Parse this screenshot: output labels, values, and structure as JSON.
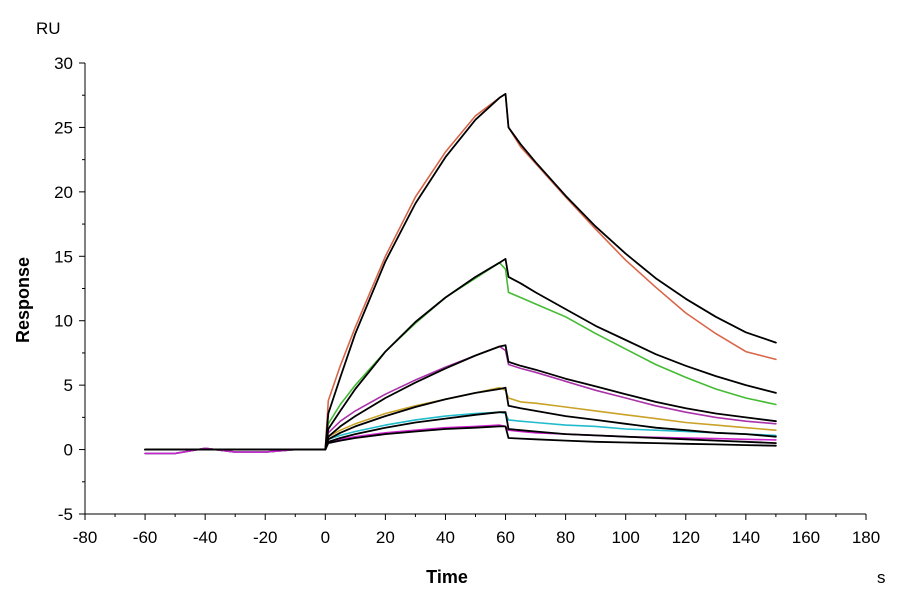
{
  "chart_data": {
    "type": "line",
    "title": "",
    "xlabel": "Time",
    "ylabel": "Response",
    "x_unit": "s",
    "y_unit": "RU",
    "xlim": [
      -80,
      180
    ],
    "ylim": [
      -5,
      30
    ],
    "x_ticks": [
      -80,
      -60,
      -40,
      -20,
      0,
      20,
      40,
      60,
      80,
      100,
      120,
      140,
      160,
      180
    ],
    "y_ticks": [
      -5,
      0,
      5,
      10,
      15,
      20,
      25,
      30
    ],
    "x_minor_step": 10,
    "y_minor_step": 2.5,
    "grid": false,
    "legend": "none",
    "injection_end": 60,
    "series": [
      {
        "color": "#d9664a",
        "fit_color": "#000000",
        "x": [
          -60,
          -50,
          -40,
          -30,
          -20,
          -10,
          -2,
          0,
          1,
          5,
          10,
          20,
          30,
          40,
          50,
          58,
          60,
          61,
          65,
          70,
          80,
          90,
          100,
          110,
          120,
          130,
          140,
          150
        ],
        "y": [
          -0.3,
          -0.3,
          0.1,
          -0.2,
          -0.2,
          0.0,
          0.0,
          0.0,
          3.8,
          6.5,
          9.5,
          15.0,
          19.6,
          23.1,
          25.9,
          27.3,
          27.6,
          25.0,
          23.5,
          22.2,
          19.6,
          17.1,
          14.7,
          12.6,
          10.6,
          9.0,
          7.6,
          7.0
        ],
        "fit_y": [
          0.0,
          0.0,
          0.0,
          0.0,
          0.0,
          0.0,
          0.0,
          0.0,
          2.8,
          5.6,
          9.0,
          14.6,
          19.1,
          22.7,
          25.6,
          27.3,
          27.6,
          25.0,
          23.7,
          22.3,
          19.7,
          17.3,
          15.2,
          13.3,
          11.7,
          10.3,
          9.1,
          8.3
        ]
      },
      {
        "color": "#44bb33",
        "fit_color": "#000000",
        "x": [
          -60,
          -50,
          -40,
          -30,
          -20,
          -10,
          -2,
          0,
          1,
          5,
          10,
          20,
          30,
          40,
          50,
          58,
          60,
          61,
          65,
          70,
          80,
          90,
          100,
          110,
          120,
          130,
          140,
          150
        ],
        "y": [
          -0.3,
          -0.3,
          0.1,
          -0.2,
          -0.2,
          0.0,
          0.0,
          0.0,
          2.0,
          3.5,
          5.0,
          7.6,
          9.8,
          11.8,
          13.3,
          14.5,
          14.0,
          12.2,
          11.8,
          11.3,
          10.3,
          9.0,
          7.8,
          6.6,
          5.6,
          4.7,
          4.0,
          3.5
        ],
        "fit_y": [
          0.0,
          0.0,
          0.0,
          0.0,
          0.0,
          0.0,
          0.0,
          0.0,
          1.6,
          3.0,
          4.7,
          7.6,
          9.9,
          11.8,
          13.4,
          14.5,
          14.8,
          13.4,
          12.9,
          12.2,
          10.9,
          9.6,
          8.5,
          7.4,
          6.5,
          5.7,
          5.0,
          4.4
        ]
      },
      {
        "color": "#aa33aa",
        "fit_color": "#000000",
        "x": [
          -60,
          -50,
          -40,
          -30,
          -20,
          -10,
          -2,
          0,
          1,
          5,
          10,
          20,
          30,
          40,
          50,
          58,
          60,
          61,
          65,
          70,
          80,
          90,
          100,
          110,
          120,
          130,
          140,
          150
        ],
        "y": [
          -0.3,
          -0.3,
          0.1,
          -0.2,
          -0.2,
          0.0,
          0.0,
          0.0,
          1.3,
          2.2,
          3.0,
          4.3,
          5.4,
          6.4,
          7.3,
          8.0,
          7.7,
          6.6,
          6.3,
          6.0,
          5.3,
          4.6,
          4.0,
          3.4,
          2.9,
          2.5,
          2.2,
          2.0
        ],
        "fit_y": [
          0.0,
          0.0,
          0.0,
          0.0,
          0.0,
          0.0,
          0.0,
          0.0,
          1.0,
          1.8,
          2.6,
          4.0,
          5.2,
          6.3,
          7.3,
          8.0,
          8.1,
          6.8,
          6.5,
          6.2,
          5.5,
          4.9,
          4.3,
          3.7,
          3.2,
          2.8,
          2.5,
          2.2
        ]
      },
      {
        "color": "#c9a227",
        "fit_color": "#000000",
        "x": [
          -60,
          -50,
          -40,
          -30,
          -20,
          -10,
          -2,
          0,
          1,
          5,
          10,
          20,
          30,
          40,
          50,
          58,
          60,
          61,
          65,
          70,
          80,
          90,
          100,
          110,
          120,
          130,
          140,
          150
        ],
        "y": [
          -0.3,
          -0.3,
          0.1,
          -0.2,
          -0.2,
          0.0,
          0.0,
          0.0,
          1.0,
          1.5,
          2.0,
          2.8,
          3.4,
          3.9,
          4.4,
          4.8,
          4.6,
          4.0,
          3.7,
          3.6,
          3.3,
          3.0,
          2.7,
          2.4,
          2.1,
          1.9,
          1.7,
          1.5
        ],
        "fit_y": [
          0.0,
          0.0,
          0.0,
          0.0,
          0.0,
          0.0,
          0.0,
          0.0,
          0.8,
          1.3,
          1.8,
          2.6,
          3.3,
          3.9,
          4.4,
          4.7,
          4.8,
          3.4,
          3.2,
          3.0,
          2.6,
          2.3,
          2.0,
          1.7,
          1.5,
          1.3,
          1.2,
          1.0
        ]
      },
      {
        "color": "#22bbcc",
        "fit_color": "#000000",
        "x": [
          -60,
          -50,
          -40,
          -30,
          -20,
          -10,
          -2,
          0,
          1,
          5,
          10,
          20,
          30,
          40,
          50,
          58,
          60,
          61,
          65,
          70,
          80,
          90,
          100,
          110,
          120,
          130,
          140,
          150
        ],
        "y": [
          -0.3,
          -0.3,
          0.1,
          -0.2,
          -0.2,
          0.0,
          0.0,
          0.0,
          0.8,
          1.1,
          1.4,
          1.9,
          2.3,
          2.6,
          2.8,
          2.9,
          2.8,
          2.3,
          2.2,
          2.1,
          1.9,
          1.8,
          1.6,
          1.5,
          1.4,
          1.3,
          1.2,
          1.1
        ],
        "fit_y": [
          0.0,
          0.0,
          0.0,
          0.0,
          0.0,
          0.0,
          0.0,
          0.0,
          0.6,
          0.9,
          1.2,
          1.7,
          2.1,
          2.4,
          2.7,
          2.9,
          2.9,
          1.6,
          1.5,
          1.4,
          1.2,
          1.1,
          1.0,
          0.9,
          0.8,
          0.7,
          0.6,
          0.5
        ]
      },
      {
        "color": "#cc22cc",
        "fit_color": "#000000",
        "x": [
          -60,
          -50,
          -40,
          -30,
          -20,
          -10,
          -2,
          0,
          1,
          5,
          10,
          20,
          30,
          40,
          50,
          58,
          60,
          61,
          65,
          70,
          80,
          90,
          100,
          110,
          120,
          130,
          140,
          150
        ],
        "y": [
          -0.3,
          -0.3,
          0.1,
          -0.2,
          -0.2,
          0.0,
          0.0,
          0.0,
          0.6,
          0.8,
          1.0,
          1.3,
          1.5,
          1.7,
          1.8,
          1.9,
          1.8,
          1.5,
          1.4,
          1.3,
          1.2,
          1.1,
          1.0,
          0.95,
          0.9,
          0.85,
          0.8,
          0.75
        ],
        "fit_y": [
          0.0,
          0.0,
          0.0,
          0.0,
          0.0,
          0.0,
          0.0,
          0.0,
          0.5,
          0.7,
          0.9,
          1.2,
          1.4,
          1.6,
          1.7,
          1.8,
          1.8,
          0.9,
          0.85,
          0.8,
          0.7,
          0.6,
          0.55,
          0.5,
          0.45,
          0.4,
          0.35,
          0.3
        ]
      }
    ]
  }
}
